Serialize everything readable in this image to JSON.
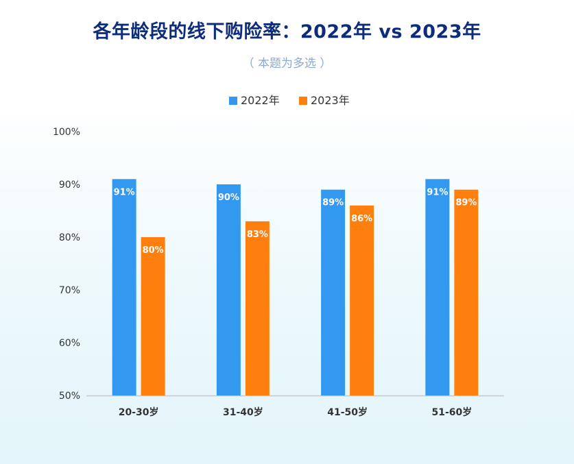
{
  "chart_data": {
    "type": "bar",
    "title": "各年龄段的线下购险率：2022年 vs 2023年",
    "subtitle": "（ 本题为多选 ）",
    "categories": [
      "20-30岁",
      "31-40岁",
      "41-50岁",
      "51-60岁"
    ],
    "series": [
      {
        "name": "2022年",
        "color": "#3399f0",
        "values": [
          91,
          90,
          89,
          91
        ],
        "labels": [
          "91%",
          "90%",
          "89%",
          "91%"
        ]
      },
      {
        "name": "2023年",
        "color": "#ff7f0e",
        "values": [
          80,
          83,
          86,
          89
        ],
        "labels": [
          "80%",
          "83%",
          "86%",
          "89%"
        ]
      }
    ],
    "ylim": [
      50,
      100
    ],
    "yticks": [
      "50%",
      "60%",
      "70%",
      "80%",
      "90%",
      "100%"
    ],
    "grid": false,
    "legend": "top-center"
  }
}
